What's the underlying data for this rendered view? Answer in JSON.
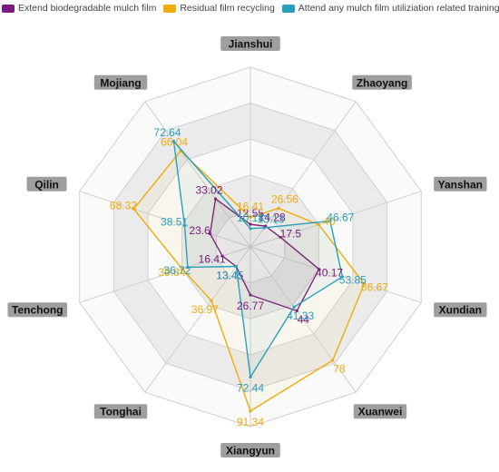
{
  "chart_data": {
    "type": "radar",
    "axes": [
      "Jianshui",
      "Zhaoyang",
      "Yanshan",
      "Xundian",
      "Xuanwei",
      "Xiangyun",
      "Tonghai",
      "Tenchong",
      "Qilin",
      "Mojiang"
    ],
    "rmax": 100,
    "grid_rings": 5,
    "legend_position": "top-left",
    "series": [
      {
        "name": "Extend biodegradable mulch film",
        "color": "#7b1a7e",
        "values": [
          12.55,
          14.28,
          17.5,
          40.17,
          44,
          26.77,
          13.45,
          16.41,
          23.6,
          33.02
        ],
        "labels": [
          "12.55",
          "14.28",
          "17.5",
          "40.17",
          "44",
          "26.77",
          "13.45",
          "16.41",
          "23.6",
          "33.02"
        ]
      },
      {
        "name": "Residual film recycling",
        "color": "#f0ab0c",
        "values": [
          16.41,
          26.56,
          40,
          66.67,
          78,
          91.34,
          36.97,
          39.84,
          68.32,
          66.04
        ],
        "labels": [
          "16.41",
          "26.56",
          "40",
          "66.67",
          "78",
          "91.34",
          "36.97",
          "39.84",
          "68.32",
          "66.04"
        ]
      },
      {
        "name": "Attend any mulch film utiliziation related training",
        "color": "#2a9fbc",
        "values": [
          10.18,
          13.13,
          46.67,
          53.85,
          41.33,
          72.44,
          13.45,
          36.72,
          38.51,
          72.64
        ],
        "labels": [
          "10.18",
          "13.13",
          "46.67",
          "53.85",
          "41.33",
          "72.44",
          "13.45",
          "36.72",
          "38.51",
          "72.64"
        ]
      }
    ]
  }
}
